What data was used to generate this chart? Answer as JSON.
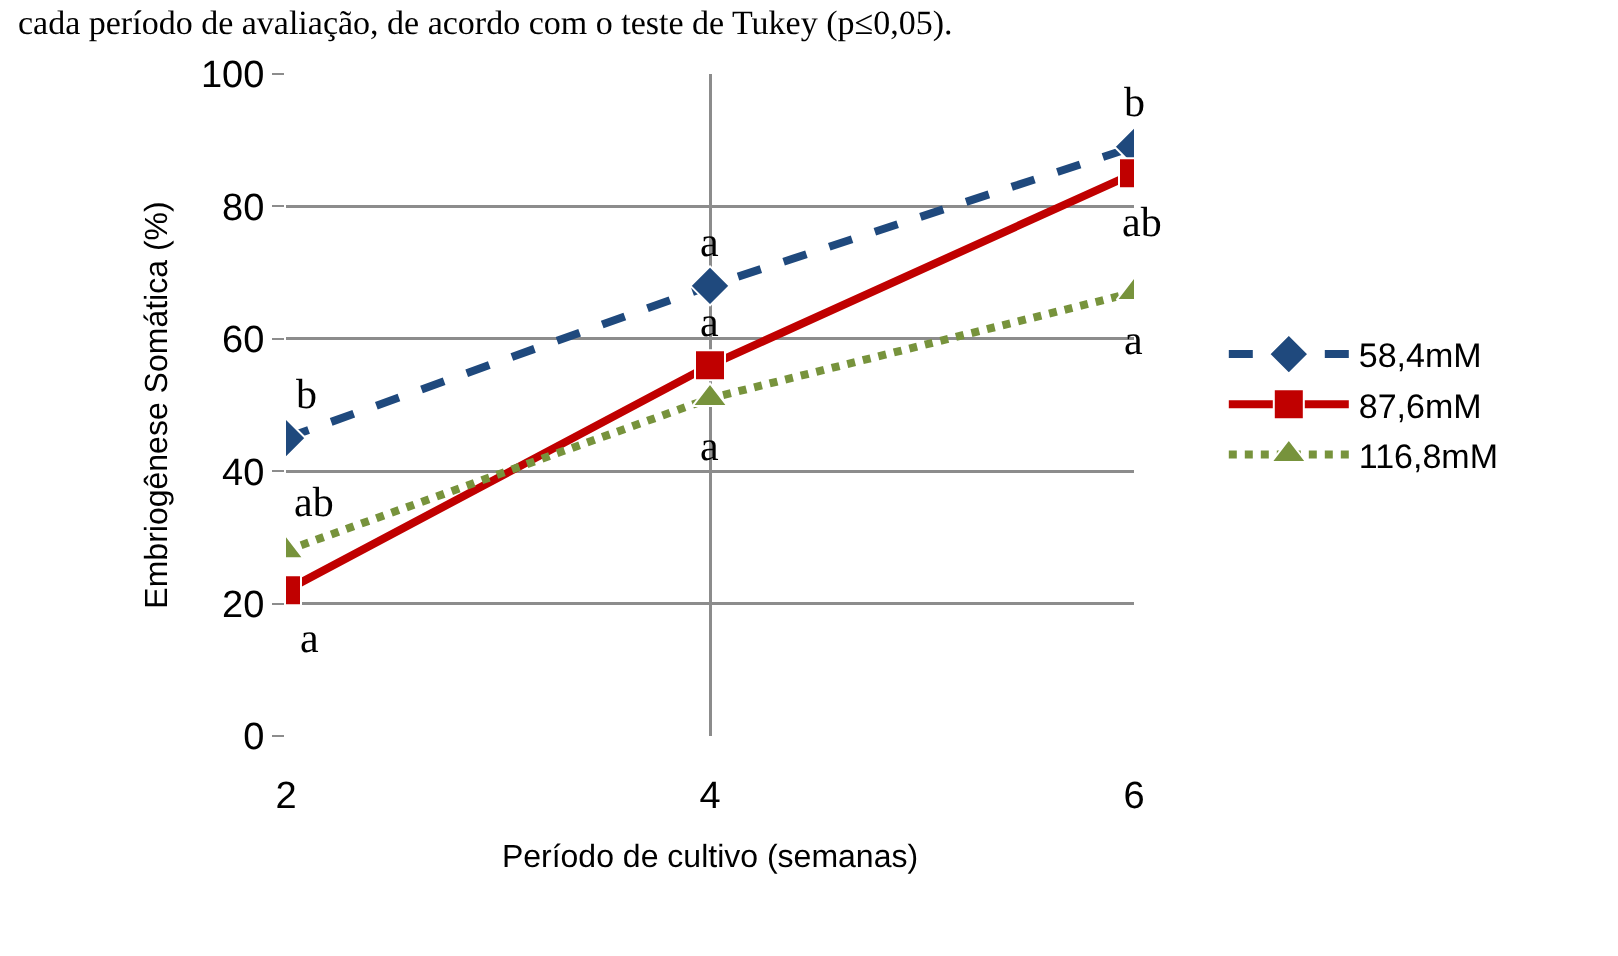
{
  "chart_data": {
    "type": "line",
    "xlabel": "Período de cultivo (semanas)",
    "ylabel": "Embriogênese Somática (%)",
    "x": [
      2,
      4,
      6
    ],
    "xlim": [
      2,
      6
    ],
    "xticks": [
      2,
      4,
      6
    ],
    "ylim": [
      0,
      100
    ],
    "yticks": [
      0,
      20,
      40,
      60,
      80,
      100
    ],
    "grid": true,
    "legend": "right",
    "series": [
      {
        "name": "58,4mM",
        "color": "#1f497d",
        "values": [
          45,
          68,
          89
        ],
        "marker": "diamond",
        "line_style": "dashed"
      },
      {
        "name": "87,6mM",
        "color": "#c00000",
        "values": [
          22,
          56,
          85
        ],
        "marker": "square",
        "line_style": "solid"
      },
      {
        "name": "116,8mM",
        "color": "#77933c",
        "values": [
          28,
          51,
          67
        ],
        "marker": "triangle",
        "line_style": "dotted"
      }
    ],
    "annotations": [
      "cada período de avaliação, de acordo com o teste de Tukey (p≤0,05).",
      {
        "text": "b",
        "x": 2,
        "y": 45
      },
      {
        "text": "a",
        "x": 4,
        "y": 68
      },
      {
        "text": "b",
        "x": 6,
        "y": 89
      },
      {
        "text": "a",
        "x": 2,
        "y": 22
      },
      {
        "text": "a",
        "x": 4,
        "y": 56
      },
      {
        "text": "ab",
        "x": 6,
        "y": 85
      },
      {
        "text": "ab",
        "x": 2,
        "y": 28
      },
      {
        "text": "a",
        "x": 4,
        "y": 51
      },
      {
        "text": "a",
        "x": 6,
        "y": 67
      }
    ]
  }
}
